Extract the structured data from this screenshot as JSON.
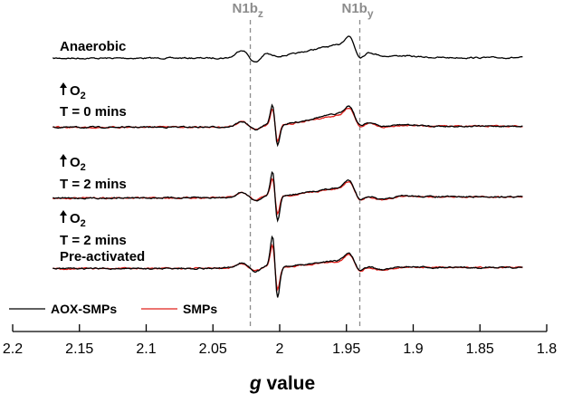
{
  "chart_data": {
    "type": "line",
    "title": "",
    "xlabel": "g value",
    "xlabel_italic": "g",
    "xlabel_rest": " value",
    "ylabel": "",
    "xlim": [
      2.2,
      1.8
    ],
    "x_reversed": true,
    "x_ticks": [
      2.2,
      2.15,
      2.1,
      2.05,
      2.0,
      1.95,
      1.9,
      1.85,
      1.8
    ],
    "x_tick_labels": [
      "2.2",
      "2.15",
      "2.1",
      "2.05",
      "2",
      "1.95",
      "1.9",
      "1.85",
      "1.8"
    ],
    "reference_lines": [
      {
        "name": "N1bz",
        "base": "N1b",
        "sub": "z",
        "g": 2.022
      },
      {
        "name": "N1by",
        "base": "N1b",
        "sub": "y",
        "g": 1.94
      }
    ],
    "panels": [
      {
        "id": "anaerobic",
        "label_lines": [
          "Anaerobic"
        ],
        "oxygen_arrow": false,
        "series": [
          "AOX-SMPs"
        ]
      },
      {
        "id": "t0",
        "oxygen_arrow": true,
        "o2_base": "O",
        "o2_sub": "2",
        "label_lines": [
          "T = 0 mins"
        ],
        "series": [
          "AOX-SMPs",
          "SMPs"
        ]
      },
      {
        "id": "t2",
        "oxygen_arrow": true,
        "o2_base": "O",
        "o2_sub": "2",
        "label_lines": [
          "T = 2 mins"
        ],
        "series": [
          "AOX-SMPs",
          "SMPs"
        ]
      },
      {
        "id": "t2pre",
        "oxygen_arrow": true,
        "o2_base": "O",
        "o2_sub": "2",
        "label_lines": [
          "T = 2 mins",
          "Pre-activated"
        ],
        "series": [
          "AOX-SMPs",
          "SMPs"
        ]
      }
    ],
    "series": [
      {
        "name": "AOX-SMPs",
        "color": "#000000"
      },
      {
        "name": "SMPs",
        "color": "#e0201b"
      }
    ],
    "legend": {
      "placement": "bottom-left",
      "entries": [
        "AOX-SMPs",
        "SMPs"
      ]
    },
    "grid": false
  }
}
